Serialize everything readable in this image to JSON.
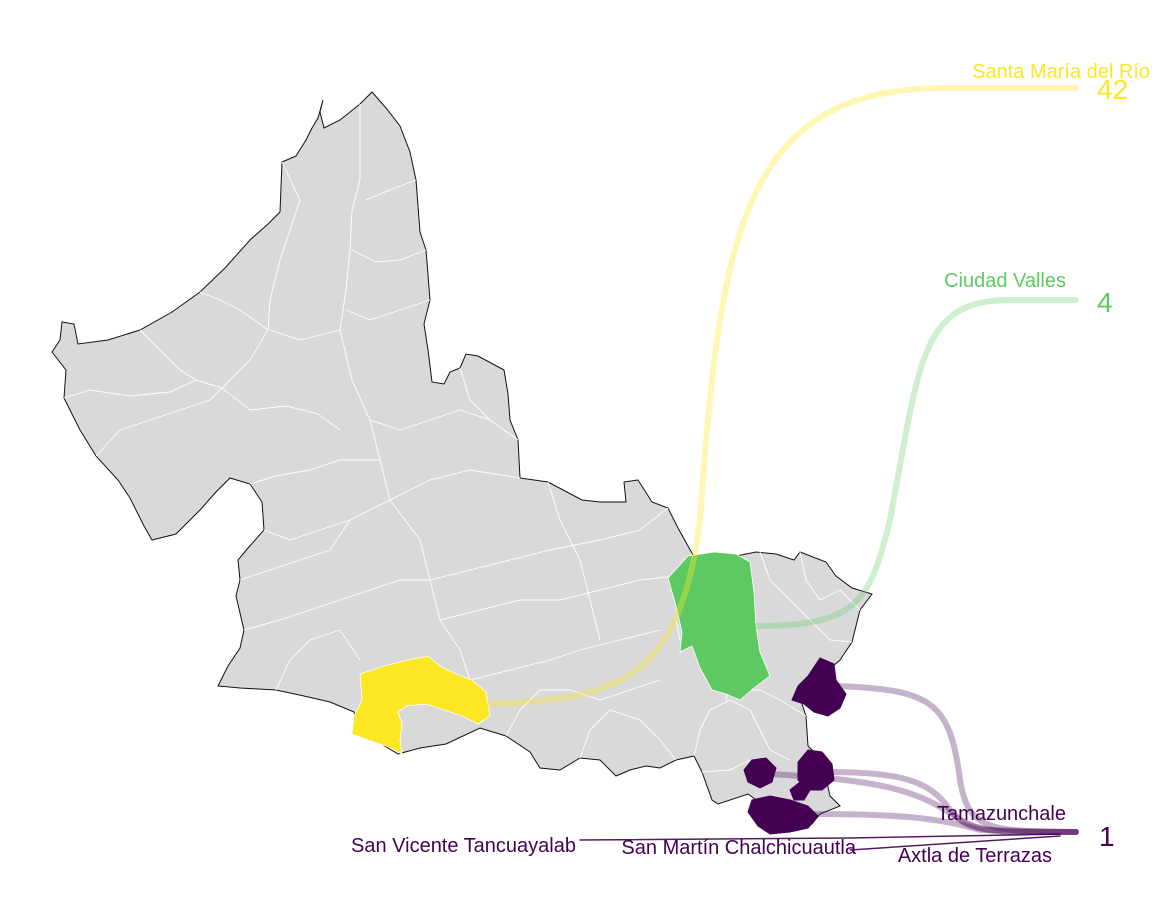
{
  "map": {
    "state_fill": "#d9d9d9",
    "state_stroke": "#111111",
    "inner_stroke": "#ffffff",
    "highlighted": [
      {
        "name": "Santa María del Río",
        "value": "42",
        "color": "#fde725"
      },
      {
        "name": "Ciudad Valles",
        "value": "4",
        "color": "#5ec962"
      },
      {
        "name": "Tamazunchale",
        "value": "1",
        "color": "#440154"
      },
      {
        "name": "Axtla de Terrazas",
        "value": "1",
        "color": "#440154"
      },
      {
        "name": "San Martín Chalchicuautla",
        "value": "1",
        "color": "#440154"
      },
      {
        "name": "San Vicente Tancuayalab",
        "value": "1",
        "color": "#440154"
      }
    ]
  }
}
